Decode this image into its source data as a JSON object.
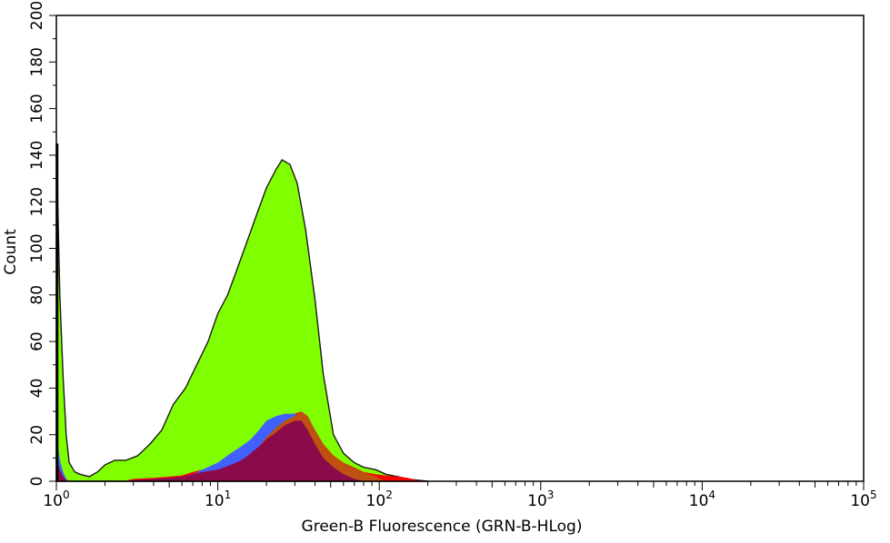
{
  "chart_data": {
    "type": "area",
    "xlabel": "Green-B Fluorescence (GRN-B-HLog)",
    "ylabel": "Count",
    "xscale": "log",
    "xlim": [
      1,
      100000
    ],
    "ylim": [
      0,
      200
    ],
    "x_ticks": [
      {
        "value": 1,
        "base": "10",
        "exp": "0"
      },
      {
        "value": 10,
        "base": "10",
        "exp": "1"
      },
      {
        "value": 100,
        "base": "10",
        "exp": "2"
      },
      {
        "value": 1000,
        "base": "10",
        "exp": "3"
      },
      {
        "value": 10000,
        "base": "10",
        "exp": "4"
      },
      {
        "value": 100000,
        "base": "10",
        "exp": "5"
      }
    ],
    "y_ticks": [
      "0",
      "20",
      "40",
      "60",
      "80",
      "100",
      "120",
      "140",
      "160",
      "180",
      "200"
    ],
    "grid": false,
    "series": [
      {
        "color": "#80ff00",
        "x": [
          1,
          1.02,
          1.05,
          1.1,
          1.15,
          1.2,
          1.3,
          1.4,
          1.6,
          1.8,
          2,
          2.3,
          2.7,
          3.2,
          3.8,
          4.5,
          5.3,
          6.3,
          7.4,
          8.7,
          10,
          11.5,
          13,
          15,
          17.5,
          20,
          23,
          25,
          28,
          31,
          35,
          40,
          45,
          52,
          60,
          70,
          80,
          95,
          110,
          130,
          150,
          170,
          200
        ],
        "y": [
          145,
          120,
          80,
          45,
          20,
          8,
          4,
          3,
          2,
          4,
          7,
          9,
          9,
          11,
          16,
          22,
          33,
          40,
          50,
          60,
          72,
          80,
          90,
          102,
          115,
          126,
          134,
          138,
          136,
          128,
          108,
          78,
          46,
          20,
          12,
          8,
          6,
          5,
          3,
          2,
          1,
          0.5,
          0
        ]
      },
      {
        "color": "#ff0000",
        "x": [
          1,
          1.02,
          1.05,
          1.1,
          1.15,
          1.2,
          1.3,
          1.5,
          2,
          2.6,
          3,
          4,
          5,
          6,
          7,
          8,
          10,
          12,
          14,
          16,
          18,
          20,
          23,
          26,
          30,
          33,
          36,
          40,
          45,
          52,
          60,
          70,
          80,
          95,
          110,
          130,
          150,
          170,
          200
        ],
        "y": [
          18,
          14,
          8,
          3,
          1,
          0,
          0,
          0,
          0,
          0,
          1,
          1.5,
          2,
          2.5,
          4,
          5,
          6,
          8,
          10,
          13,
          17,
          21,
          24,
          27,
          29,
          30,
          28,
          22,
          16,
          11,
          8,
          6,
          4,
          3,
          2.5,
          2,
          1.5,
          0.5,
          0
        ]
      },
      {
        "color": "#4060ff",
        "x": [
          1,
          1.02,
          1.05,
          1.1,
          1.15,
          1.2,
          1.3,
          1.5,
          2,
          2.6,
          3,
          4,
          5,
          6,
          7,
          8,
          10,
          12,
          14,
          16,
          18,
          20,
          23,
          26,
          30,
          35,
          40,
          45,
          52,
          60,
          70,
          80,
          95
        ],
        "y": [
          20,
          16,
          9,
          4,
          1,
          0,
          0,
          0,
          0,
          0,
          0.5,
          1,
          1.5,
          2,
          3,
          5,
          8,
          12,
          15,
          18,
          22,
          26,
          28,
          29,
          29,
          25,
          18,
          12,
          8,
          5,
          3,
          1,
          0
        ]
      },
      {
        "color": "#c05010",
        "x": [
          10,
          12,
          14,
          16,
          18,
          20,
          23,
          26,
          30,
          33,
          36,
          40,
          45,
          52,
          60,
          70,
          80,
          95,
          110
        ],
        "y": [
          0,
          2,
          5,
          10,
          15,
          19,
          23,
          26,
          28,
          30,
          28,
          22,
          16,
          11,
          8,
          6,
          4,
          2,
          0
        ]
      },
      {
        "color": "#8b0a4a",
        "x": [
          1,
          1.02,
          1.05,
          1.1,
          1.15,
          1.2,
          1.3,
          1.5,
          2,
          2.6,
          3,
          4,
          5,
          6,
          7,
          8,
          10,
          12,
          14,
          16,
          18,
          20,
          23,
          26,
          30,
          33,
          36,
          40,
          45,
          52,
          60,
          70,
          80
        ],
        "y": [
          10,
          8,
          5,
          2,
          0.5,
          0,
          0,
          0,
          0,
          0,
          0.5,
          1,
          1.5,
          2,
          3,
          4,
          5,
          7,
          9,
          12,
          15,
          18,
          21,
          24,
          26,
          26,
          22,
          16,
          10,
          6,
          3,
          1,
          0
        ]
      }
    ]
  }
}
